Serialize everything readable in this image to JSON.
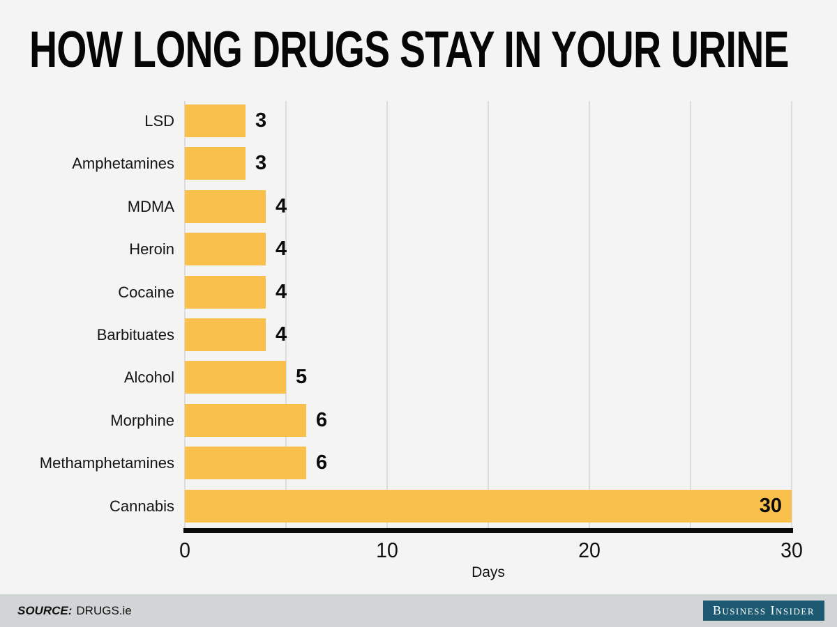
{
  "title": "HOW LONG DRUGS STAY IN YOUR URINE",
  "chart_data": {
    "type": "bar",
    "orientation": "horizontal",
    "title": "HOW LONG DRUGS STAY IN YOUR URINE",
    "categories": [
      "LSD",
      "Amphetamines",
      "MDMA",
      "Heroin",
      "Cocaine",
      "Barbituates",
      "Alcohol",
      "Morphine",
      "Methamphetamines",
      "Cannabis"
    ],
    "values": [
      3,
      3,
      4,
      4,
      4,
      4,
      5,
      6,
      6,
      30
    ],
    "xlabel": "Days",
    "xlim": [
      0,
      30
    ],
    "xticks": [
      0,
      10,
      20,
      30
    ],
    "gridline_interval": 5,
    "grid": true,
    "legend": false,
    "bar_color": "#f9c14b",
    "value_labels_shown": true
  },
  "footer": {
    "source_label": "SOURCE:",
    "source_value": "DRUGS.ie",
    "brand": "Business Insider"
  },
  "colors": {
    "background": "#f4f4f4",
    "bar": "#f9c14b",
    "gridline": "#dcdcdc",
    "axis": "#0b0b0b",
    "footer_background": "#d2d5d6",
    "brand_background": "#1d5a72",
    "text": "#141414"
  }
}
